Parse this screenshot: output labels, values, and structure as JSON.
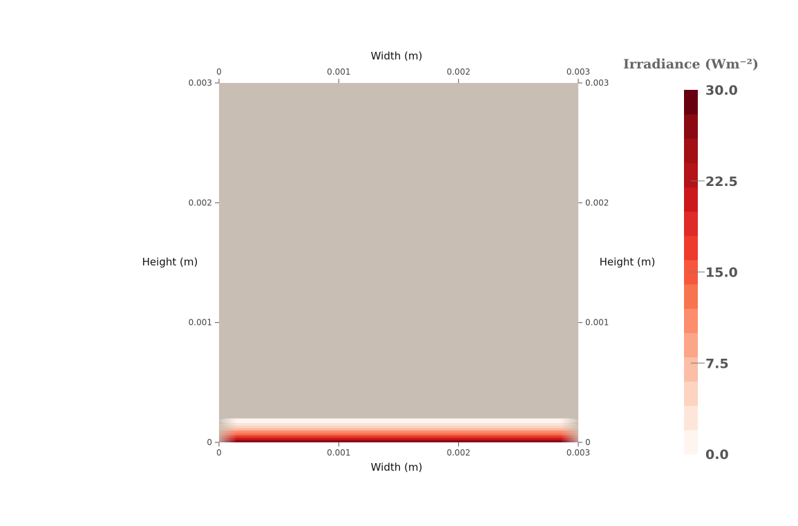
{
  "chart_data": {
    "type": "heatmap",
    "title": "",
    "x_axis": {
      "label": "Width (m)",
      "range": [
        0,
        0.003
      ],
      "ticks": [
        "0",
        "0.001",
        "0.002",
        "0.003"
      ],
      "shown": [
        "top",
        "bottom"
      ]
    },
    "y_axis": {
      "label": "Height (m)",
      "range": [
        0,
        0.003
      ],
      "ticks": [
        "0",
        "0.001",
        "0.002",
        "0.003"
      ],
      "shown": [
        "left",
        "right"
      ]
    },
    "background_color": "#c8beb4",
    "field": {
      "description_of_values": "Irradiance is highest at the bottom boundary (height 0) and decays to ~0 within the first ~0.0002 m of height; uniform across width except slightly lower near the side edges.",
      "profile": [
        {
          "height": 0.0,
          "value": 30.0
        },
        {
          "height": 2e-05,
          "value": 24.0
        },
        {
          "height": 4e-05,
          "value": 19.0
        },
        {
          "height": 6e-05,
          "value": 15.0
        },
        {
          "height": 8e-05,
          "value": 11.5
        },
        {
          "height": 0.0001,
          "value": 8.5
        },
        {
          "height": 0.00012,
          "value": 6.0
        },
        {
          "height": 0.00014,
          "value": 4.0
        },
        {
          "height": 0.00016,
          "value": 2.5
        },
        {
          "height": 0.0002,
          "value": 0.0
        }
      ]
    },
    "colorbar": {
      "title": "Irradiance (Wm⁻²)",
      "range": [
        0.0,
        30.0
      ],
      "tick_values": [
        0.0,
        7.5,
        15.0,
        22.5,
        30.0
      ],
      "tick_labels": [
        "0.0",
        "7.5",
        "15.0",
        "22.5",
        "30.0"
      ],
      "colors": [
        "#fff5f0",
        "#fee5da",
        "#fdd4c1",
        "#fcbea5",
        "#fca588",
        "#fc8d6d",
        "#f8744f",
        "#f6583e",
        "#ef3b2c",
        "#df2a27",
        "#cb181d",
        "#b31319",
        "#a20f15",
        "#8a0a14",
        "#670010"
      ]
    }
  }
}
